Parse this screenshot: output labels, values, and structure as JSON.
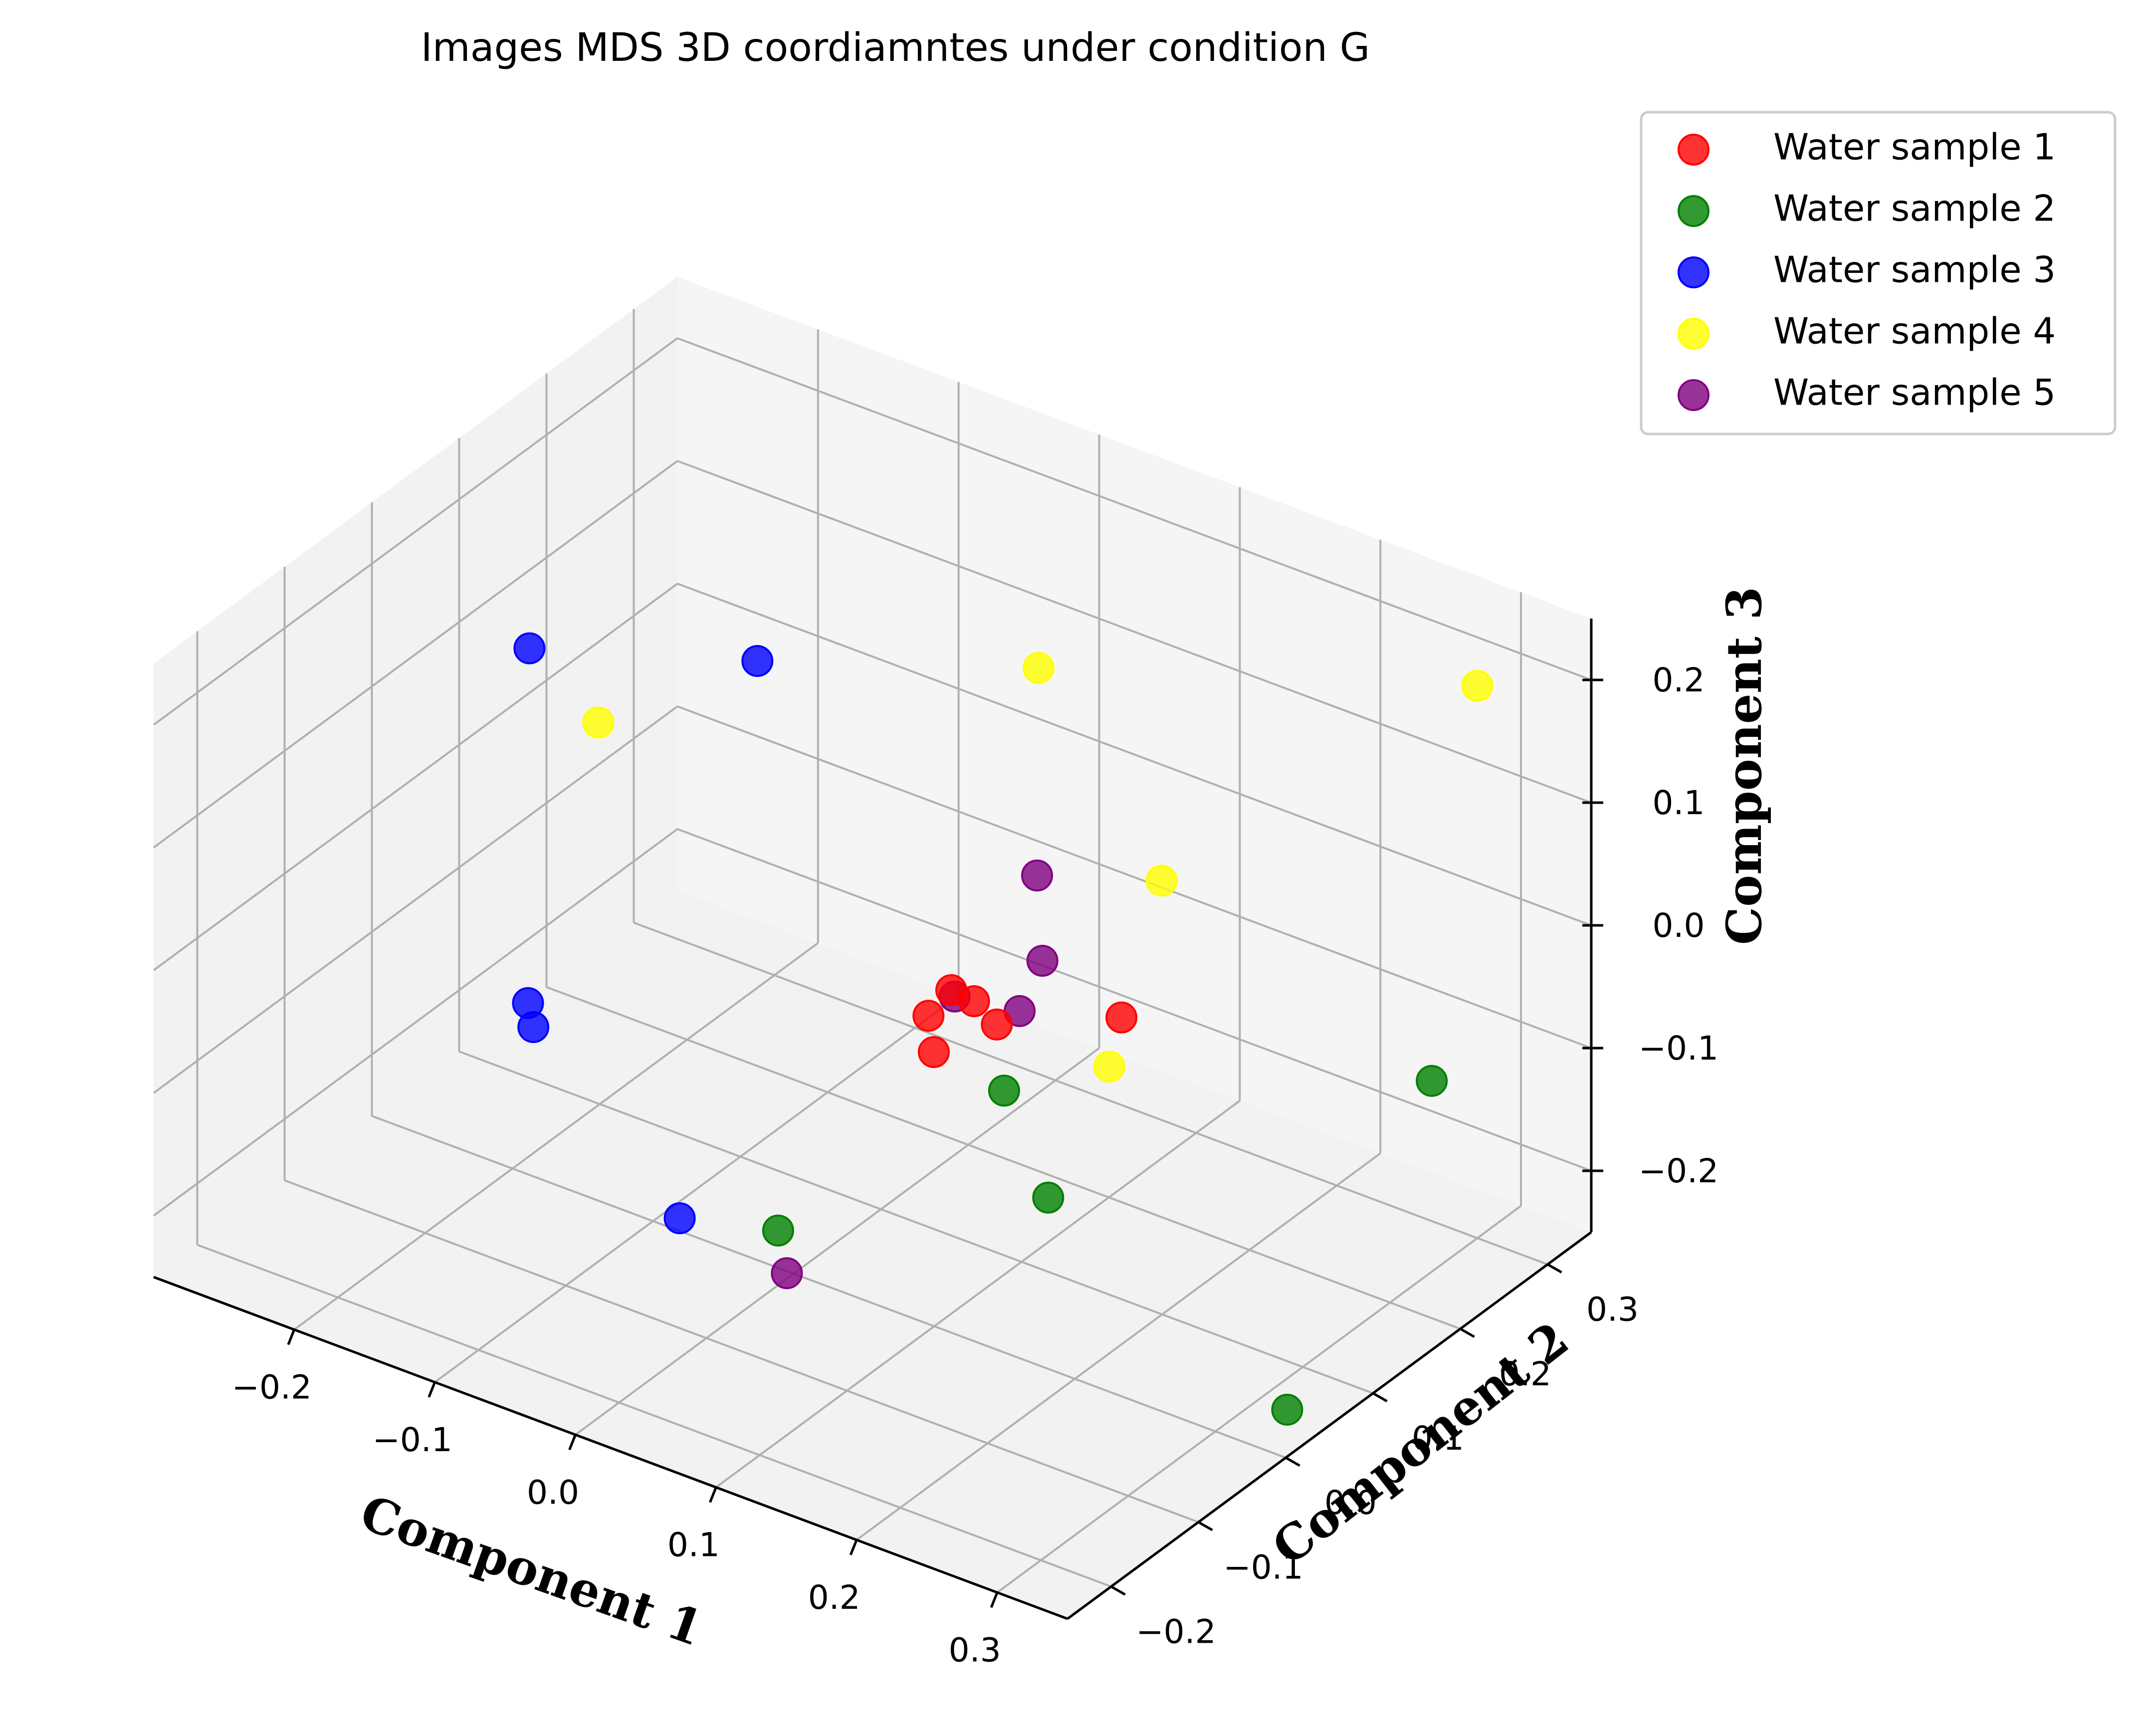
{
  "chart_data": {
    "type": "scatter",
    "title": "Images MDS 3D coordiamntes under condition G",
    "xlabel": "Component 1",
    "ylabel": "Component 2",
    "zlabel": "Component 3",
    "xlim": [
      -0.3,
      0.35
    ],
    "ylim": [
      -0.25,
      0.35
    ],
    "zlim": [
      -0.25,
      0.25
    ],
    "x_ticks": [
      "−0.2",
      "−0.1",
      "0.0",
      "0.1",
      "0.2",
      "0.3"
    ],
    "y_ticks": [
      "−0.2",
      "−0.1",
      "0.0",
      "0.1",
      "0.2",
      "0.3"
    ],
    "z_ticks": [
      "−0.2",
      "−0.1",
      "0.0",
      "0.1",
      "0.2"
    ],
    "grid": true,
    "legend_position": "outside-top-right",
    "series": [
      {
        "name": "Water sample 1",
        "color": "#ff0000",
        "points": [
          [
            0.05,
            0.1,
            -0.05
          ],
          [
            0.06,
            0.11,
            -0.06
          ],
          [
            0.04,
            0.09,
            -0.07
          ],
          [
            0.07,
            0.12,
            -0.08
          ],
          [
            0.05,
            0.08,
            -0.09
          ],
          [
            0.14,
            0.15,
            -0.06
          ]
        ]
      },
      {
        "name": "Water sample 2",
        "color": "#008000",
        "points": [
          [
            0.28,
            0.28,
            -0.12
          ],
          [
            0.1,
            0.08,
            -0.1
          ],
          [
            0.15,
            0.05,
            -0.15
          ],
          [
            0.02,
            -0.05,
            -0.18
          ],
          [
            0.32,
            0.05,
            -0.25
          ]
        ]
      },
      {
        "name": "Water sample 3",
        "color": "#0000ff",
        "points": [
          [
            -0.25,
            0.1,
            0.1
          ],
          [
            -0.15,
            0.2,
            0.08
          ],
          [
            -0.22,
            0.05,
            -0.15
          ],
          [
            -0.21,
            0.04,
            -0.16
          ],
          [
            -0.05,
            -0.05,
            -0.2
          ]
        ]
      },
      {
        "name": "Water sample 4",
        "color": "#ffff00",
        "points": [
          [
            0.3,
            0.3,
            0.2
          ],
          [
            0.05,
            0.2,
            0.16
          ],
          [
            -0.17,
            0.05,
            0.1
          ],
          [
            0.15,
            0.18,
            0.04
          ],
          [
            0.15,
            0.12,
            -0.08
          ]
        ]
      },
      {
        "name": "Water sample 5",
        "color": "#800080",
        "points": [
          [
            0.08,
            0.15,
            0.03
          ],
          [
            0.09,
            0.14,
            -0.03
          ],
          [
            0.08,
            0.13,
            -0.07
          ],
          [
            0.04,
            0.12,
            -0.07
          ],
          [
            0.02,
            -0.04,
            -0.22
          ]
        ]
      }
    ]
  }
}
